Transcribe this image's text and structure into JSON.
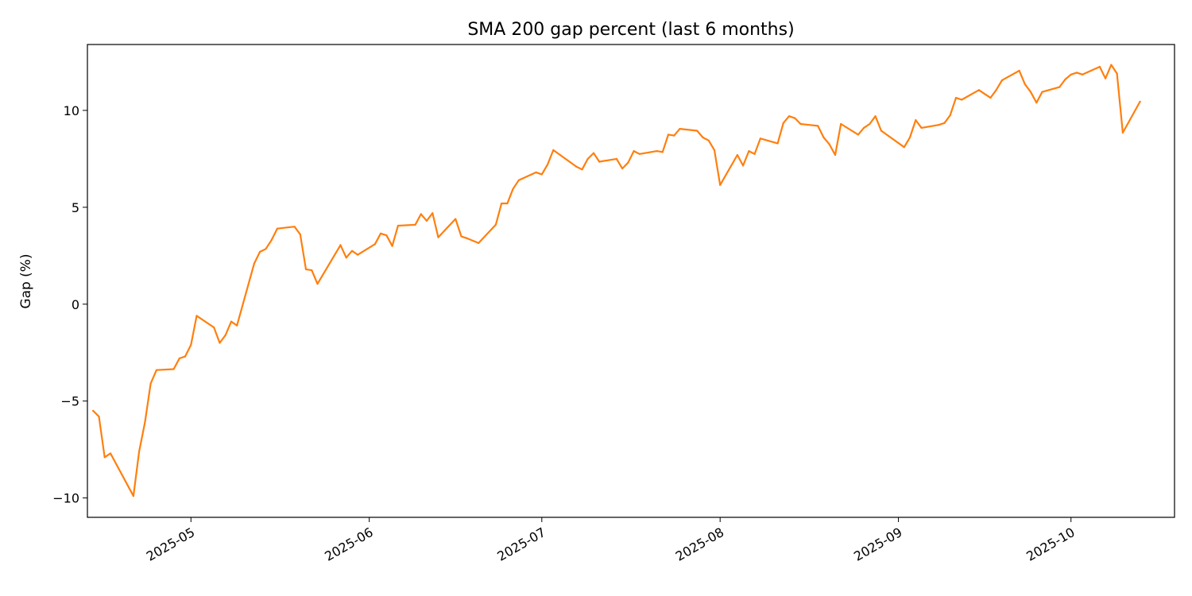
{
  "chart_data": {
    "type": "line",
    "title": "SMA 200 gap percent (last 6 months)",
    "xlabel": "",
    "ylabel": "Gap (%)",
    "xlim": [
      "2025-04-13",
      "2025-10-19"
    ],
    "ylim": [
      -11,
      13.4
    ],
    "grid": false,
    "legend": "none",
    "x_ticks": [
      {
        "value": "2025-05-01",
        "label": "2025-05"
      },
      {
        "value": "2025-06-01",
        "label": "2025-06"
      },
      {
        "value": "2025-07-01",
        "label": "2025-07"
      },
      {
        "value": "2025-08-01",
        "label": "2025-08"
      },
      {
        "value": "2025-09-01",
        "label": "2025-09"
      },
      {
        "value": "2025-10-01",
        "label": "2025-10"
      }
    ],
    "y_ticks": [
      {
        "value": 10,
        "label": "10"
      },
      {
        "value": 5,
        "label": "5"
      },
      {
        "value": 0,
        "label": "0"
      },
      {
        "value": -5,
        "label": "−5"
      },
      {
        "value": -10,
        "label": "−10"
      }
    ],
    "series": [
      {
        "color": "#ff7f0e",
        "points": [
          [
            "2025-04-14",
            -5.5
          ],
          [
            "2025-04-15",
            -5.8
          ],
          [
            "2025-04-16",
            -7.9
          ],
          [
            "2025-04-17",
            -7.7
          ],
          [
            "2025-04-21",
            -9.9
          ],
          [
            "2025-04-22",
            -7.6
          ],
          [
            "2025-04-23",
            -6.1
          ],
          [
            "2025-04-24",
            -4.1
          ],
          [
            "2025-04-25",
            -3.4
          ],
          [
            "2025-04-28",
            -3.35
          ],
          [
            "2025-04-29",
            -2.8
          ],
          [
            "2025-04-30",
            -2.7
          ],
          [
            "2025-05-01",
            -2.1
          ],
          [
            "2025-05-02",
            -0.6
          ],
          [
            "2025-05-05",
            -1.2
          ],
          [
            "2025-05-06",
            -2.0
          ],
          [
            "2025-05-07",
            -1.6
          ],
          [
            "2025-05-08",
            -0.9
          ],
          [
            "2025-05-09",
            -1.1
          ],
          [
            "2025-05-12",
            2.1
          ],
          [
            "2025-05-13",
            2.7
          ],
          [
            "2025-05-14",
            2.85
          ],
          [
            "2025-05-15",
            3.3
          ],
          [
            "2025-05-16",
            3.9
          ],
          [
            "2025-05-19",
            4.0
          ],
          [
            "2025-05-20",
            3.6
          ],
          [
            "2025-05-21",
            1.8
          ],
          [
            "2025-05-22",
            1.75
          ],
          [
            "2025-05-23",
            1.05
          ],
          [
            "2025-05-27",
            3.05
          ],
          [
            "2025-05-28",
            2.4
          ],
          [
            "2025-05-29",
            2.75
          ],
          [
            "2025-05-30",
            2.55
          ],
          [
            "2025-06-02",
            3.1
          ],
          [
            "2025-06-03",
            3.65
          ],
          [
            "2025-06-04",
            3.55
          ],
          [
            "2025-06-05",
            3.0
          ],
          [
            "2025-06-06",
            4.05
          ],
          [
            "2025-06-09",
            4.1
          ],
          [
            "2025-06-10",
            4.65
          ],
          [
            "2025-06-11",
            4.3
          ],
          [
            "2025-06-12",
            4.7
          ],
          [
            "2025-06-13",
            3.45
          ],
          [
            "2025-06-16",
            4.4
          ],
          [
            "2025-06-17",
            3.5
          ],
          [
            "2025-06-18",
            3.4
          ],
          [
            "2025-06-20",
            3.15
          ],
          [
            "2025-06-23",
            4.1
          ],
          [
            "2025-06-24",
            5.2
          ],
          [
            "2025-06-25",
            5.2
          ],
          [
            "2025-06-26",
            5.95
          ],
          [
            "2025-06-27",
            6.4
          ],
          [
            "2025-06-30",
            6.8
          ],
          [
            "2025-07-01",
            6.7
          ],
          [
            "2025-07-02",
            7.2
          ],
          [
            "2025-07-03",
            7.95
          ],
          [
            "2025-07-07",
            7.1
          ],
          [
            "2025-07-08",
            6.95
          ],
          [
            "2025-07-09",
            7.5
          ],
          [
            "2025-07-10",
            7.8
          ],
          [
            "2025-07-11",
            7.35
          ],
          [
            "2025-07-14",
            7.5
          ],
          [
            "2025-07-15",
            7.0
          ],
          [
            "2025-07-16",
            7.3
          ],
          [
            "2025-07-17",
            7.9
          ],
          [
            "2025-07-18",
            7.75
          ],
          [
            "2025-07-21",
            7.9
          ],
          [
            "2025-07-22",
            7.85
          ],
          [
            "2025-07-23",
            8.75
          ],
          [
            "2025-07-24",
            8.7
          ],
          [
            "2025-07-25",
            9.05
          ],
          [
            "2025-07-28",
            8.95
          ],
          [
            "2025-07-29",
            8.6
          ],
          [
            "2025-07-30",
            8.45
          ],
          [
            "2025-07-31",
            7.95
          ],
          [
            "2025-08-01",
            6.15
          ],
          [
            "2025-08-04",
            7.7
          ],
          [
            "2025-08-05",
            7.15
          ],
          [
            "2025-08-06",
            7.9
          ],
          [
            "2025-08-07",
            7.75
          ],
          [
            "2025-08-08",
            8.55
          ],
          [
            "2025-08-11",
            8.3
          ],
          [
            "2025-08-12",
            9.35
          ],
          [
            "2025-08-13",
            9.7
          ],
          [
            "2025-08-14",
            9.6
          ],
          [
            "2025-08-15",
            9.3
          ],
          [
            "2025-08-18",
            9.2
          ],
          [
            "2025-08-19",
            8.6
          ],
          [
            "2025-08-20",
            8.25
          ],
          [
            "2025-08-21",
            7.7
          ],
          [
            "2025-08-22",
            9.3
          ],
          [
            "2025-08-25",
            8.75
          ],
          [
            "2025-08-26",
            9.1
          ],
          [
            "2025-08-27",
            9.3
          ],
          [
            "2025-08-28",
            9.7
          ],
          [
            "2025-08-29",
            8.95
          ],
          [
            "2025-09-02",
            8.1
          ],
          [
            "2025-09-03",
            8.6
          ],
          [
            "2025-09-04",
            9.5
          ],
          [
            "2025-09-05",
            9.1
          ],
          [
            "2025-09-08",
            9.25
          ],
          [
            "2025-09-09",
            9.35
          ],
          [
            "2025-09-10",
            9.75
          ],
          [
            "2025-09-11",
            10.65
          ],
          [
            "2025-09-12",
            10.55
          ],
          [
            "2025-09-15",
            11.05
          ],
          [
            "2025-09-16",
            10.85
          ],
          [
            "2025-09-17",
            10.65
          ],
          [
            "2025-09-18",
            11.05
          ],
          [
            "2025-09-19",
            11.55
          ],
          [
            "2025-09-22",
            12.05
          ],
          [
            "2025-09-23",
            11.35
          ],
          [
            "2025-09-24",
            10.95
          ],
          [
            "2025-09-25",
            10.4
          ],
          [
            "2025-09-26",
            10.95
          ],
          [
            "2025-09-29",
            11.2
          ],
          [
            "2025-09-30",
            11.6
          ],
          [
            "2025-10-01",
            11.85
          ],
          [
            "2025-10-02",
            11.95
          ],
          [
            "2025-10-03",
            11.85
          ],
          [
            "2025-10-06",
            12.25
          ],
          [
            "2025-10-07",
            11.65
          ],
          [
            "2025-10-08",
            12.35
          ],
          [
            "2025-10-09",
            11.9
          ],
          [
            "2025-10-10",
            8.85
          ],
          [
            "2025-10-13",
            10.45
          ]
        ]
      }
    ]
  }
}
